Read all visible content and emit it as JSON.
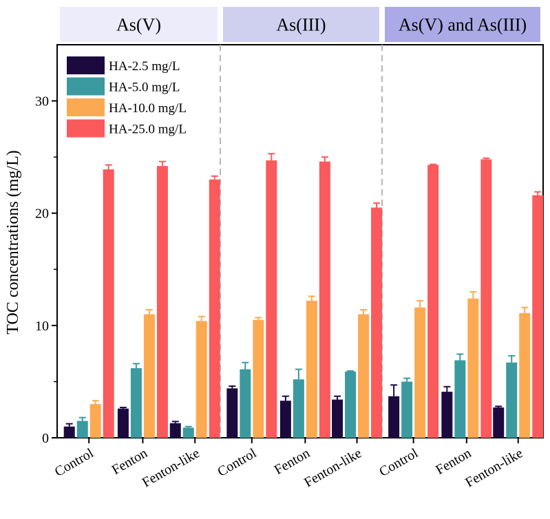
{
  "chart_data": {
    "type": "bar",
    "ylabel": "TOC concentrations (mg/L)",
    "xlabel": "",
    "ylim": [
      0,
      35
    ],
    "yticks": [
      0,
      10,
      20,
      30
    ],
    "legend_position": "top-left",
    "panels": [
      {
        "label": "As(V)",
        "color": "#ececfa"
      },
      {
        "label": "As(III)",
        "color": "#cfd0ef"
      },
      {
        "label": "As(V) and As(III)",
        "color": "#aaaae6"
      }
    ],
    "categories": [
      "Control",
      "Fenton",
      "Fenton-like"
    ],
    "series": [
      {
        "name": "HA-2.5 mg/L",
        "color": "#1c0a3f",
        "values": [
          [
            1.0,
            2.6,
            1.3
          ],
          [
            4.4,
            3.3,
            3.4
          ],
          [
            3.7,
            4.1,
            2.7
          ]
        ],
        "errors": [
          [
            0.25,
            0.1,
            0.15
          ],
          [
            0.2,
            0.4,
            0.3
          ],
          [
            1.0,
            0.45,
            0.1
          ]
        ]
      },
      {
        "name": "HA-5.0 mg/L",
        "color": "#3a9a9f",
        "values": [
          [
            1.5,
            6.2,
            0.9
          ],
          [
            6.1,
            5.2,
            5.9
          ],
          [
            5.0,
            6.9,
            6.7
          ]
        ],
        "errors": [
          [
            0.3,
            0.4,
            0.1
          ],
          [
            0.6,
            0.9,
            0.05
          ],
          [
            0.3,
            0.55,
            0.6
          ]
        ]
      },
      {
        "name": "HA-10.0 mg/L",
        "color": "#fbaa52",
        "values": [
          [
            3.0,
            11.0,
            10.4
          ],
          [
            10.5,
            12.2,
            11.0
          ],
          [
            11.6,
            12.4,
            11.1
          ]
        ],
        "errors": [
          [
            0.3,
            0.4,
            0.4
          ],
          [
            0.2,
            0.4,
            0.4
          ],
          [
            0.6,
            0.6,
            0.5
          ]
        ]
      },
      {
        "name": "HA-25.0 mg/L",
        "color": "#fa5a5c",
        "values": [
          [
            23.9,
            24.2,
            23.0
          ],
          [
            24.7,
            24.6,
            20.5
          ],
          [
            24.3,
            24.8,
            21.6
          ]
        ],
        "errors": [
          [
            0.4,
            0.4,
            0.3
          ],
          [
            0.6,
            0.4,
            0.4
          ],
          [
            0.05,
            0.1,
            0.3
          ]
        ]
      }
    ]
  }
}
